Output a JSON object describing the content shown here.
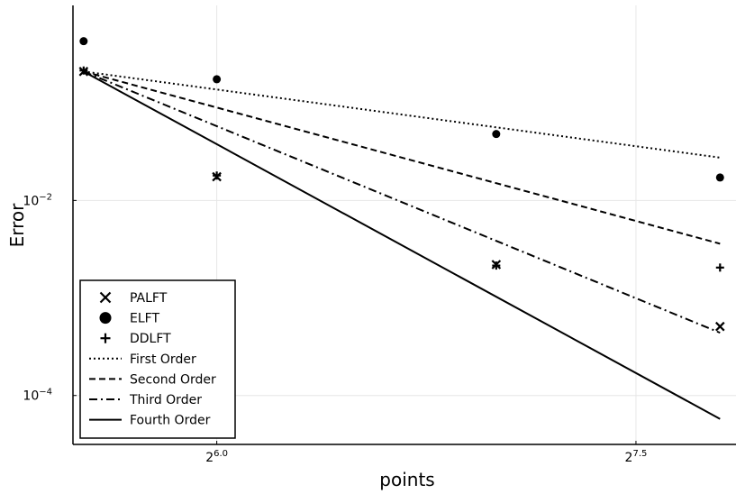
{
  "chart_data": {
    "type": "scatter",
    "title": "",
    "xlabel": "points",
    "ylabel": "Error",
    "x_scale": "log2",
    "y_scale": "log10",
    "xlim": [
      44.8,
      232
    ],
    "ylim": [
      3.15e-05,
      1.0
    ],
    "grid": true,
    "legend_position": "bottom-left",
    "x_ticks": [
      {
        "value": 64,
        "base": "2",
        "exp": "6.0"
      },
      {
        "value": 181.02,
        "base": "2",
        "exp": "7.5"
      }
    ],
    "y_ticks": [
      {
        "value": 0.01,
        "base": "10",
        "exp": "−2"
      },
      {
        "value": 0.0001,
        "base": "10",
        "exp": "−4"
      }
    ],
    "series": [
      {
        "name": "PALFT",
        "marker": "x",
        "x": [
          46,
          64,
          128,
          223
        ],
        "y": [
          0.21,
          0.0175,
          0.0022,
          0.00051
        ]
      },
      {
        "name": "ELFT",
        "marker": "circle",
        "x": [
          46,
          64,
          128,
          223
        ],
        "y": [
          0.43,
          0.175,
          0.048,
          0.0172
        ]
      },
      {
        "name": "DDLFT",
        "marker": "plus",
        "x": [
          46,
          64,
          128,
          223
        ],
        "y": [
          0.215,
          0.018,
          0.00215,
          0.00205
        ]
      },
      {
        "name": "First Order",
        "line": "dotted",
        "x": [
          46,
          223
        ],
        "y": [
          0.21,
          0.0275
        ]
      },
      {
        "name": "Second Order",
        "line": "dashed",
        "x": [
          46,
          223
        ],
        "y": [
          0.21,
          0.0036
        ]
      },
      {
        "name": "Third Order",
        "line": "dashdot",
        "x": [
          46,
          223
        ],
        "y": [
          0.21,
          0.00044
        ]
      },
      {
        "name": "Fourth Order",
        "line": "solid",
        "x": [
          46,
          223
        ],
        "y": [
          0.21,
          5.75e-05
        ]
      }
    ]
  }
}
